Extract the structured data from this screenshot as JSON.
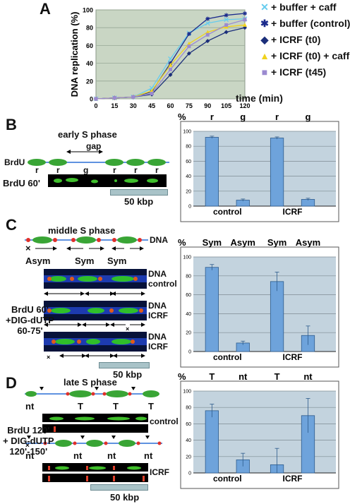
{
  "panels": {
    "A": {
      "letter": "A"
    },
    "B": {
      "letter": "B",
      "title": "early S phase",
      "gap": "gap",
      "brdu": "BrdU",
      "fiber_labels": [
        "r",
        "r",
        "g",
        "r",
        "r",
        "r"
      ],
      "image_label": "BrdU 60'",
      "scale": "50 kbp"
    },
    "C": {
      "letter": "C",
      "title": "middle S phase",
      "dna": "DNA",
      "fork_labels": [
        "Asym",
        "Sym",
        "Sym"
      ],
      "track_labels": [
        [
          "DNA",
          "control"
        ],
        [
          "DNA",
          "ICRF"
        ],
        [
          "DNA",
          "ICRF"
        ]
      ],
      "side_label": [
        "BrdU 60'",
        "+DIG-dUTP",
        "60-75'"
      ],
      "cross": "×",
      "scale": "50 kbp"
    },
    "D": {
      "letter": "D",
      "title": "late S phase",
      "fiber1_labels": [
        "nt",
        "T",
        "T",
        "T"
      ],
      "fiber2_labels": [
        "nt",
        "nt",
        "nt",
        "nt"
      ],
      "track_labels": [
        "control",
        "ICRF"
      ],
      "side_label": [
        "BrdU 120'",
        "+ DIG-dUTP",
        "120'-150'"
      ],
      "scale": "50 kbp"
    }
  },
  "chart_data": [
    {
      "type": "line",
      "panel": "A",
      "ylabel": "DNA replication (%)",
      "xlabel": "time (min)",
      "x": [
        0,
        15,
        30,
        45,
        60,
        75,
        90,
        105,
        120
      ],
      "ylim": [
        0,
        100
      ],
      "yticks": [
        0,
        20,
        40,
        60,
        80,
        100
      ],
      "grid": true,
      "legend": "right",
      "series": [
        {
          "name": "+ buffer + caff",
          "color": "#66ccee",
          "marker": "x",
          "values": [
            0,
            1,
            2,
            12,
            45,
            74,
            85,
            89,
            90
          ]
        },
        {
          "name": "+ buffer (control)",
          "color": "#1a2a8c",
          "marker": "asterisk",
          "values": [
            0,
            1,
            2,
            8,
            40,
            73,
            90,
            94,
            96
          ]
        },
        {
          "name": "+ ICRF (t0)",
          "color": "#1b2e7a",
          "marker": "diamond",
          "values": [
            0,
            1,
            2,
            5,
            27,
            51,
            65,
            75,
            80
          ]
        },
        {
          "name": "+ ICRF (t0) + caff",
          "color": "#f0d21e",
          "marker": "triangle",
          "values": [
            0,
            1,
            2,
            9,
            38,
            62,
            75,
            81,
            83
          ]
        },
        {
          "name": "+ ICRF (t45)",
          "color": "#9b8ad0",
          "marker": "square",
          "values": [
            0,
            1,
            2,
            6,
            33,
            59,
            72,
            83,
            89
          ]
        }
      ]
    },
    {
      "type": "bar",
      "panel": "B",
      "unit": "%",
      "bar_labels": [
        "r",
        "g",
        "r",
        "g"
      ],
      "groups": [
        "control",
        "ICRF"
      ],
      "values": [
        92,
        8,
        91,
        9
      ],
      "errors": [
        1.5,
        1.5,
        1.5,
        1.5
      ],
      "ylim": [
        0,
        100
      ],
      "yticks": [
        0,
        20,
        40,
        60,
        80,
        100
      ],
      "grid": true
    },
    {
      "type": "bar",
      "panel": "C",
      "unit": "%",
      "bar_labels": [
        "Sym",
        "Asym",
        "Sym",
        "Asym"
      ],
      "groups": [
        "control",
        "ICRF"
      ],
      "values": [
        89,
        9,
        74,
        17
      ],
      "errors": [
        3,
        2,
        10,
        10
      ],
      "ylim": [
        0,
        100
      ],
      "yticks": [
        0,
        20,
        40,
        60,
        80,
        100
      ],
      "grid": true
    },
    {
      "type": "bar",
      "panel": "D",
      "unit": "%",
      "bar_labels": [
        "T",
        "nt",
        "T",
        "nt"
      ],
      "groups": [
        "control",
        "ICRF"
      ],
      "values": [
        76,
        16,
        10,
        70
      ],
      "errors": [
        8,
        8,
        20,
        21
      ],
      "ylim": [
        0,
        100
      ],
      "yticks": [
        0,
        20,
        40,
        60,
        80,
        100
      ],
      "grid": true
    }
  ]
}
